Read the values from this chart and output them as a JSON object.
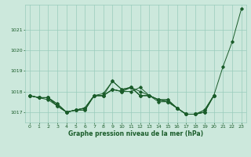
{
  "background_color": "#cce8dc",
  "plot_background": "#cce8dc",
  "grid_color": "#99ccbb",
  "line_color": "#1a5c2a",
  "title": "Graphe pression niveau de la mer (hPa)",
  "xlim": [
    -0.5,
    23.5
  ],
  "ylim": [
    1016.5,
    1022.2
  ],
  "yticks": [
    1017,
    1018,
    1019,
    1020,
    1021
  ],
  "xticks": [
    0,
    1,
    2,
    3,
    4,
    5,
    6,
    7,
    8,
    9,
    10,
    11,
    12,
    13,
    14,
    15,
    16,
    17,
    18,
    19,
    20,
    21,
    22,
    23
  ],
  "series": [
    [
      1017.8,
      1017.7,
      1017.7,
      1017.4,
      1017.0,
      1017.1,
      1017.1,
      1017.8,
      1017.8,
      1018.1,
      1018.0,
      1018.0,
      1018.2,
      1017.8,
      1017.6,
      1017.6,
      1017.2,
      1016.9,
      1016.9,
      1017.0,
      1017.8,
      1019.2,
      1020.4,
      1022.0
    ],
    [
      1017.8,
      1017.7,
      1017.7,
      1017.4,
      1017.0,
      1017.1,
      1017.1,
      1017.8,
      1017.8,
      1018.5,
      1018.1,
      1018.2,
      1018.0,
      1017.8,
      1017.6,
      1017.6,
      1017.2,
      1016.9,
      1016.9,
      1017.0,
      1017.8,
      null,
      null,
      null
    ],
    [
      1017.8,
      1017.7,
      1017.7,
      1017.3,
      1017.0,
      1017.1,
      1017.2,
      1017.8,
      1017.9,
      1018.5,
      1018.1,
      1018.2,
      1017.8,
      1017.8,
      1017.6,
      1017.5,
      1017.2,
      1016.9,
      1016.9,
      1017.0,
      1017.8,
      null,
      null,
      null
    ],
    [
      1017.8,
      1017.7,
      1017.6,
      1017.3,
      1017.0,
      1017.1,
      1017.2,
      1017.8,
      1017.8,
      1018.1,
      1018.0,
      1018.2,
      1017.8,
      1017.8,
      1017.6,
      1017.5,
      1017.2,
      1016.9,
      1016.9,
      1017.1,
      1017.8,
      null,
      null,
      null
    ],
    [
      1017.8,
      1017.7,
      1017.7,
      1017.3,
      1017.0,
      1017.1,
      1017.2,
      1017.8,
      1017.8,
      1018.1,
      1018.0,
      1018.2,
      1017.8,
      1017.8,
      1017.5,
      1017.5,
      1017.2,
      1016.9,
      1016.9,
      1017.1,
      1017.8,
      null,
      null,
      null
    ]
  ]
}
